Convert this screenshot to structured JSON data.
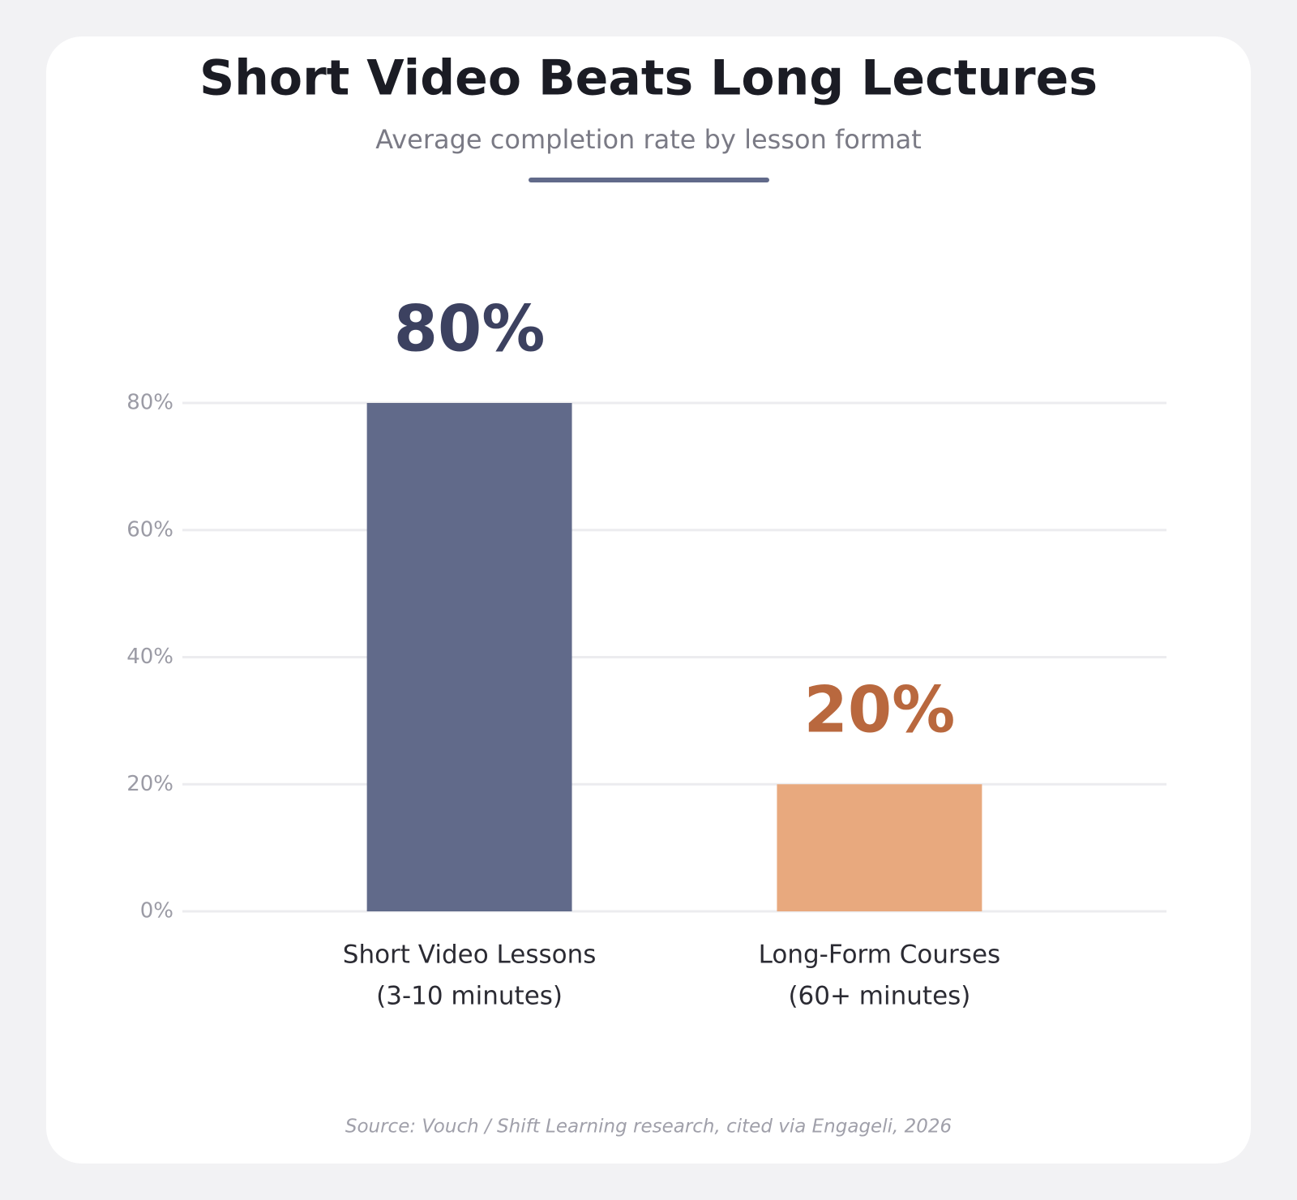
{
  "chart_data": {
    "type": "bar",
    "title": "Short Video Beats Long Lectures",
    "subtitle": "Average completion rate by lesson format",
    "categories": [
      [
        "Short Video Lessons",
        "(3-10 minutes)"
      ],
      [
        "Long-Form Courses",
        "(60+ minutes)"
      ]
    ],
    "values": [
      80,
      20
    ],
    "value_labels": [
      "80%",
      "20%"
    ],
    "colors": [
      "#616a8a",
      "#e8a97e"
    ],
    "value_label_colors": [
      "#3c4160",
      "#b9683e"
    ],
    "ylim": [
      0,
      80
    ],
    "yticks": [
      {
        "value": 0,
        "label": "0%"
      },
      {
        "value": 20,
        "label": "20%"
      },
      {
        "value": 40,
        "label": "40%"
      },
      {
        "value": 60,
        "label": "60%"
      },
      {
        "value": 80,
        "label": "80%"
      }
    ],
    "grid": true,
    "source": "Source: Vouch / Shift Learning research, cited via Engageli, 2026"
  }
}
